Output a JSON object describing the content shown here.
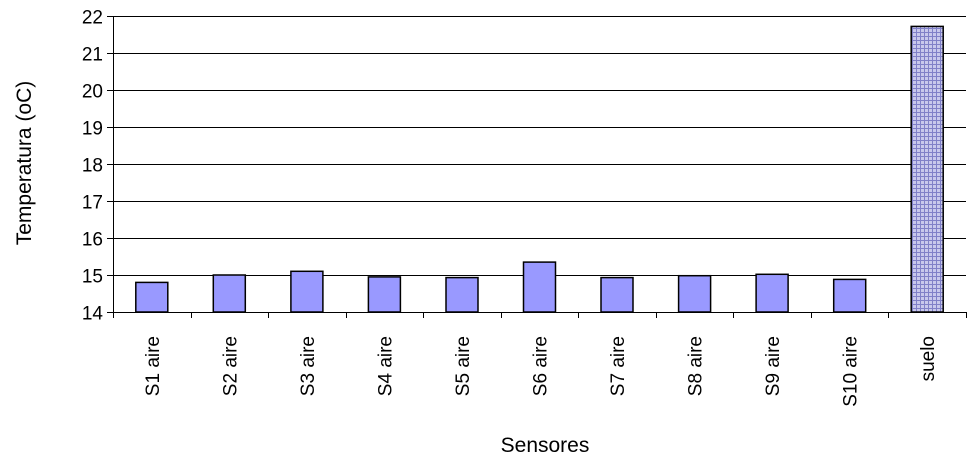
{
  "chart_data": {
    "type": "bar",
    "xlabel": "Sensores",
    "ylabel": "Temperatura (oC)",
    "ylim": [
      14,
      22
    ],
    "yticks": [
      14,
      15,
      16,
      17,
      18,
      19,
      20,
      21,
      22
    ],
    "grid": true,
    "categories": [
      "S1 aire",
      "S2 aire",
      "S3 aire",
      "S4 aire",
      "S5 aire",
      "S6 aire",
      "S7 aire",
      "S8 aire",
      "S9 aire",
      "S10 aire",
      "suelo"
    ],
    "values": [
      14.8,
      15.0,
      15.1,
      14.95,
      14.93,
      15.35,
      14.93,
      14.98,
      15.02,
      14.88,
      21.72
    ],
    "colors": {
      "bar": "#9999ff",
      "highlight_bar": "#c8c8ec",
      "highlight_hatch": "#8080c8",
      "stroke": "#000000"
    }
  }
}
